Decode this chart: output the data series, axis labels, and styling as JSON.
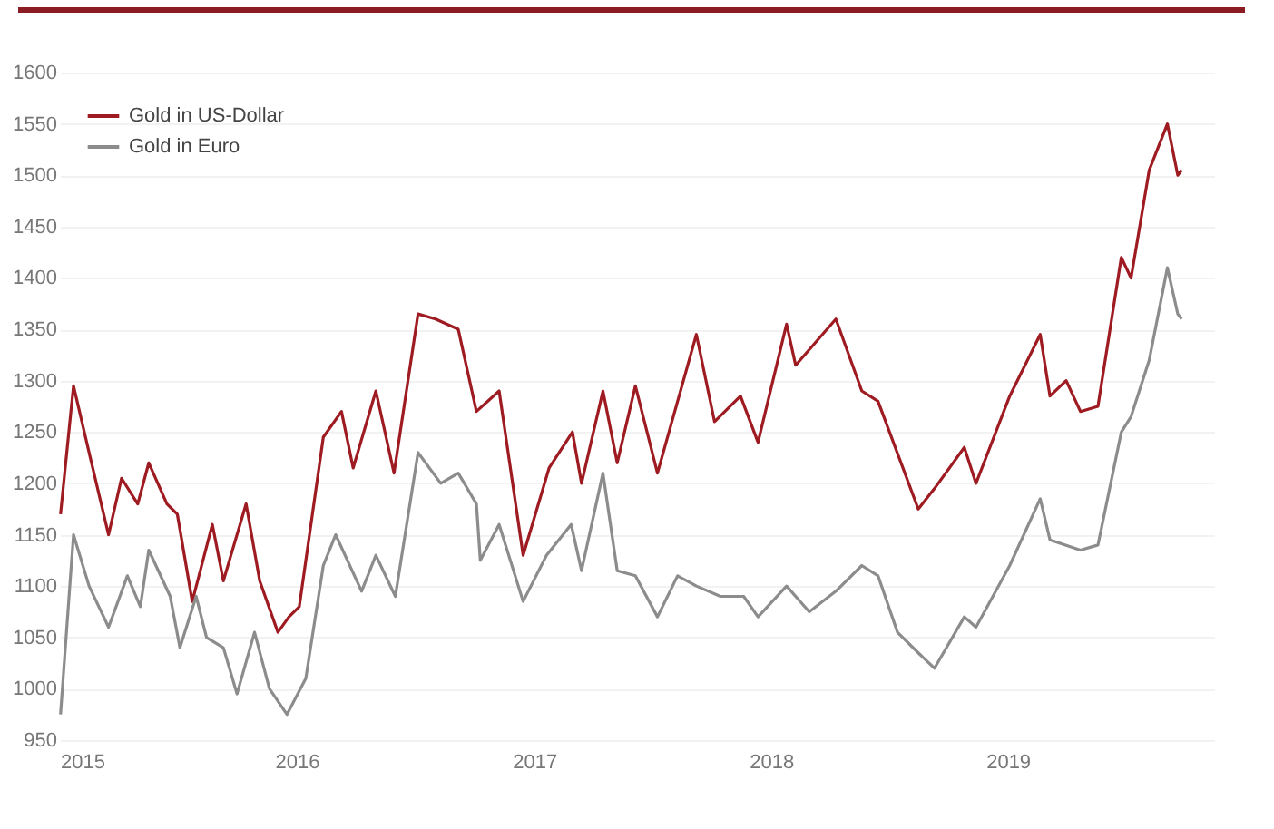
{
  "chart_data": {
    "type": "line",
    "xlim": [
      "2015-01-01",
      "2019-11-15"
    ],
    "xticks": [
      "2015",
      "2016",
      "2017",
      "2018",
      "2019"
    ],
    "ylim": [
      950,
      1600
    ],
    "yticks": [
      950,
      1000,
      1050,
      1100,
      1150,
      1200,
      1250,
      1300,
      1350,
      1400,
      1450,
      1500,
      1550,
      1600
    ],
    "grid": "y",
    "legend": "top left",
    "marker": "none",
    "line_style": "solid",
    "series": [
      {
        "name": "Gold in US-Dollar",
        "color": "#9e1b22",
        "x": [
          "2015-01-02",
          "2015-01-22",
          "2015-02-15",
          "2015-03-17",
          "2015-04-06",
          "2015-05-01",
          "2015-05-18",
          "2015-06-15",
          "2015-07-01",
          "2015-07-24",
          "2015-08-24",
          "2015-09-10",
          "2015-10-15",
          "2015-11-05",
          "2015-12-03",
          "2015-12-20",
          "2016-01-05",
          "2016-02-11",
          "2016-03-10",
          "2016-03-28",
          "2016-05-02",
          "2016-05-30",
          "2016-07-06",
          "2016-08-02",
          "2016-09-06",
          "2016-10-04",
          "2016-11-08",
          "2016-12-15",
          "2017-01-24",
          "2017-03-01",
          "2017-03-15",
          "2017-04-17",
          "2017-05-09",
          "2017-06-06",
          "2017-07-10",
          "2017-09-08",
          "2017-10-06",
          "2017-11-15",
          "2017-12-12",
          "2018-01-25",
          "2018-02-08",
          "2018-04-11",
          "2018-05-21",
          "2018-06-15",
          "2018-08-16",
          "2018-09-10",
          "2018-10-26",
          "2018-11-13",
          "2019-01-04",
          "2019-02-20",
          "2019-03-07",
          "2019-04-01",
          "2019-04-23",
          "2019-05-20",
          "2019-06-25",
          "2019-07-10",
          "2019-08-07",
          "2019-09-04",
          "2019-09-20",
          "2019-09-26"
        ],
        "values": [
          1170,
          1295,
          1230,
          1150,
          1205,
          1180,
          1220,
          1180,
          1170,
          1085,
          1160,
          1105,
          1180,
          1105,
          1055,
          1070,
          1080,
          1245,
          1270,
          1215,
          1290,
          1210,
          1365,
          1360,
          1350,
          1270,
          1290,
          1130,
          1215,
          1250,
          1200,
          1290,
          1220,
          1295,
          1210,
          1345,
          1260,
          1285,
          1240,
          1355,
          1315,
          1360,
          1290,
          1280,
          1175,
          1195,
          1235,
          1200,
          1285,
          1345,
          1285,
          1300,
          1270,
          1275,
          1420,
          1400,
          1505,
          1550,
          1500,
          1505
        ]
      },
      {
        "name": "Gold in Euro",
        "color": "#8c8c8c",
        "x": [
          "2015-01-02",
          "2015-01-22",
          "2015-02-15",
          "2015-03-17",
          "2015-04-15",
          "2015-05-05",
          "2015-05-18",
          "2015-06-20",
          "2015-07-05",
          "2015-07-30",
          "2015-08-15",
          "2015-09-10",
          "2015-10-01",
          "2015-10-28",
          "2015-11-20",
          "2015-12-17",
          "2016-01-15",
          "2016-02-11",
          "2016-03-01",
          "2016-04-10",
          "2016-05-02",
          "2016-06-01",
          "2016-07-06",
          "2016-08-10",
          "2016-09-06",
          "2016-10-04",
          "2016-10-10",
          "2016-11-08",
          "2016-12-15",
          "2017-01-20",
          "2017-02-27",
          "2017-03-15",
          "2017-04-17",
          "2017-05-09",
          "2017-06-06",
          "2017-07-10",
          "2017-08-10",
          "2017-09-08",
          "2017-10-15",
          "2017-11-20",
          "2017-12-12",
          "2018-01-25",
          "2018-03-01",
          "2018-04-11",
          "2018-05-21",
          "2018-06-15",
          "2018-07-15",
          "2018-08-16",
          "2018-09-10",
          "2018-10-26",
          "2018-11-13",
          "2019-01-04",
          "2019-02-20",
          "2019-03-07",
          "2019-04-23",
          "2019-05-20",
          "2019-06-25",
          "2019-07-10",
          "2019-08-07",
          "2019-09-04",
          "2019-09-20",
          "2019-09-26"
        ],
        "values": [
          975,
          1150,
          1100,
          1060,
          1110,
          1080,
          1135,
          1090,
          1040,
          1090,
          1050,
          1040,
          995,
          1055,
          1000,
          975,
          1010,
          1120,
          1150,
          1095,
          1130,
          1090,
          1230,
          1200,
          1210,
          1180,
          1125,
          1160,
          1085,
          1130,
          1160,
          1115,
          1210,
          1115,
          1110,
          1070,
          1110,
          1100,
          1090,
          1090,
          1070,
          1100,
          1075,
          1095,
          1120,
          1110,
          1055,
          1035,
          1020,
          1070,
          1060,
          1120,
          1185,
          1145,
          1135,
          1140,
          1250,
          1265,
          1320,
          1410,
          1365,
          1360
        ]
      }
    ]
  }
}
